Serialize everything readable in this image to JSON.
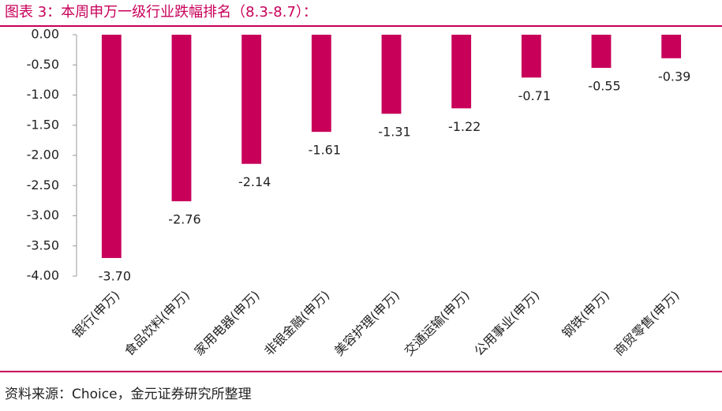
{
  "chart_data": {
    "type": "bar",
    "title": "图表 3：本周申万一级行业跌幅排名（8.3-8.7）：",
    "source": "资料来源：Choice，金元证券研究所整理",
    "categories": [
      "银行(申万)",
      "食品饮料(申万)",
      "家用电器(申万)",
      "非银金融(申万)",
      "美容护理(申万)",
      "交通运输(申万)",
      "公用事业(申万)",
      "钢铁(申万)",
      "商贸零售(申万)"
    ],
    "values": [
      -3.7,
      -2.76,
      -2.14,
      -1.61,
      -1.31,
      -1.22,
      -0.71,
      -0.55,
      -0.39
    ],
    "value_labels": [
      "-3.70",
      "-2.76",
      "-2.14",
      "-1.61",
      "-1.31",
      "-1.22",
      "-0.71",
      "-0.55",
      "-0.39"
    ],
    "color": "#c8005a",
    "ylim": [
      -4,
      0
    ],
    "yticks": [
      {
        "value": 0,
        "label": "0.00"
      },
      {
        "value": -0.5,
        "label": "-0.50"
      },
      {
        "value": -1,
        "label": "-1.00"
      },
      {
        "value": -1.5,
        "label": "-1.50"
      },
      {
        "value": -2,
        "label": "-2.00"
      },
      {
        "value": -2.5,
        "label": "-2.50"
      },
      {
        "value": -3,
        "label": "-3.00"
      },
      {
        "value": -3.5,
        "label": "-3.50"
      },
      {
        "value": -4,
        "label": "-4.00"
      }
    ],
    "grid": false
  }
}
